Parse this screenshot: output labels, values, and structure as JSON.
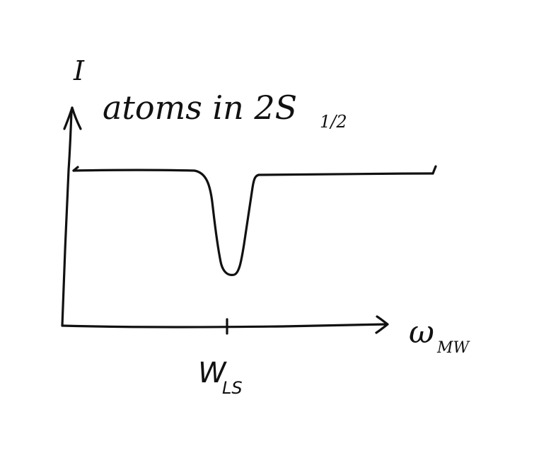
{
  "diagram": {
    "y_axis_label": "I",
    "curve_label": "atoms in 2S",
    "curve_label_subscript": "1/2",
    "x_axis_label": "ω",
    "x_axis_label_subscript": "MW",
    "tick_label": "W",
    "tick_label_subscript": "LS"
  }
}
